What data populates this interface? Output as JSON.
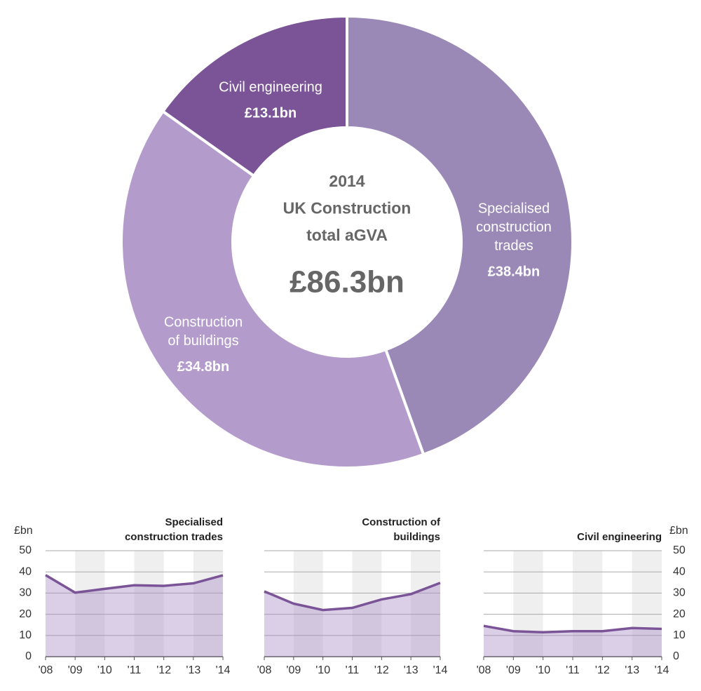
{
  "chart_data": [
    {
      "type": "donut",
      "title": [
        "2014",
        "UK Construction",
        "total aGVA"
      ],
      "total": 86.3,
      "total_label": "£86.3bn",
      "categories": [
        [
          "Specialised",
          "construction",
          "trades"
        ],
        [
          "Construction",
          "of buildings"
        ],
        [
          "Civil engineering"
        ]
      ],
      "values": [
        38.4,
        34.8,
        13.1
      ],
      "value_labels": [
        "£38.4bn",
        "£34.8bn",
        "£13.1bn"
      ],
      "colors": [
        "#9a89b6",
        "#b39ccb",
        "#7a5497"
      ]
    },
    {
      "type": "area",
      "title": [
        "Specialised",
        "construction trades"
      ],
      "y_label": "£bn",
      "ytick_side": "left",
      "categories": [
        "'08",
        "'09",
        "'10",
        "'11",
        "'12",
        "'13",
        "'14"
      ],
      "values": [
        38.5,
        30.2,
        32,
        33.7,
        33.4,
        34.6,
        38.4
      ],
      "color": "#7a5497",
      "ylim": [
        0,
        50
      ],
      "yticks": [
        0,
        10,
        20,
        30,
        40,
        50
      ],
      "grid": true
    },
    {
      "type": "area",
      "title": [
        "Construction of",
        "buildings"
      ],
      "ytick_side": "none",
      "categories": [
        "'08",
        "'09",
        "'10",
        "'11",
        "'12",
        "'13",
        "'14"
      ],
      "values": [
        30.8,
        25,
        22,
        23,
        27,
        29.5,
        34.8
      ],
      "color": "#7a5497",
      "ylim": [
        0,
        50
      ],
      "yticks": [
        0,
        10,
        20,
        30,
        40,
        50
      ],
      "grid": true
    },
    {
      "type": "area",
      "title": [
        "Civil engineering"
      ],
      "y_label": "£bn",
      "ytick_side": "right",
      "categories": [
        "'08",
        "'09",
        "'10",
        "'11",
        "'12",
        "'13",
        "'14"
      ],
      "values": [
        14.5,
        12,
        11.5,
        12,
        12,
        13.5,
        13.1
      ],
      "color": "#7a5497",
      "ylim": [
        0,
        50
      ],
      "yticks": [
        0,
        10,
        20,
        30,
        40,
        50
      ],
      "grid": true
    }
  ]
}
